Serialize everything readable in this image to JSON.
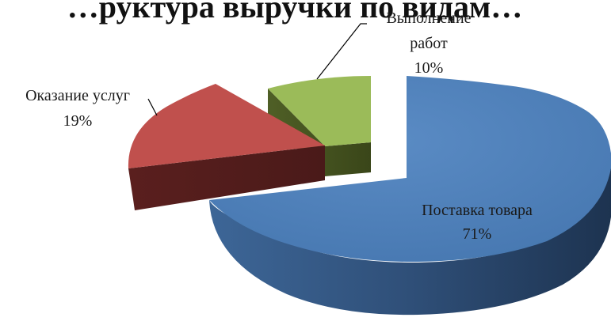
{
  "chart_data": {
    "type": "pie",
    "title": "…руктура выручки по видам…",
    "slices": [
      {
        "name": "Поставка товара",
        "value": 71,
        "label": "71%",
        "color": "#4f81bd",
        "side_color": "#2a4a72"
      },
      {
        "name": "Оказание услуг",
        "value": 19,
        "label": "19%",
        "color": "#c0504d",
        "side_color": "#5a1f1e"
      },
      {
        "name": "Выполнение работ",
        "value": 10,
        "label": "10%",
        "color": "#9bbb59",
        "side_color": "#4a5a24"
      }
    ],
    "exploded": true,
    "three_d": true
  }
}
